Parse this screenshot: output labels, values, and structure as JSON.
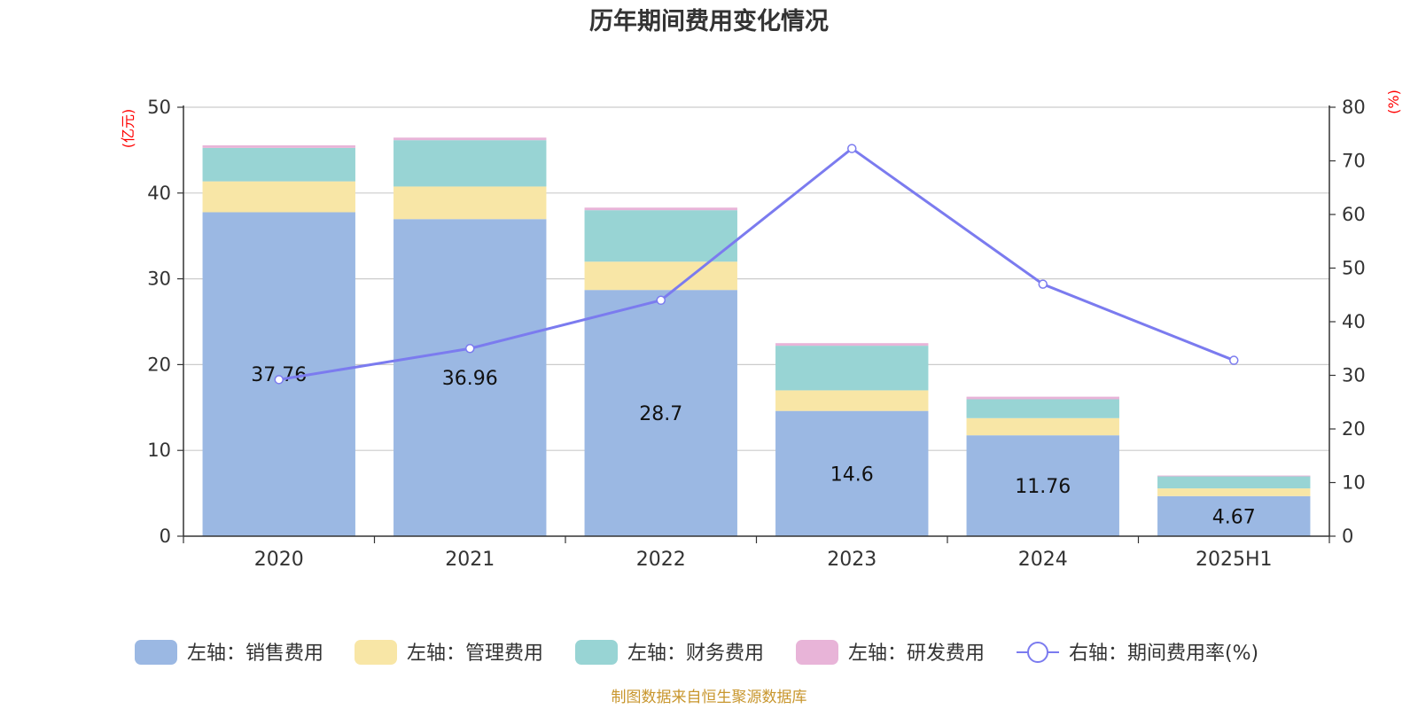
{
  "chart_data": {
    "type": "bar",
    "title": "历年期间费用变化情况",
    "categories": [
      "2020",
      "2021",
      "2022",
      "2023",
      "2024",
      "2025H1"
    ],
    "left_axis": {
      "unit": "(亿元)",
      "range": [
        0,
        50
      ],
      "ticks": [
        0,
        10,
        20,
        30,
        40,
        50
      ]
    },
    "right_axis": {
      "unit": "(%)",
      "range": [
        0,
        80
      ],
      "ticks": [
        0,
        10,
        20,
        30,
        40,
        50,
        60,
        70,
        80
      ]
    },
    "grid": true,
    "legend_position": "bottom",
    "series": [
      {
        "name": "左轴：销售费用",
        "type": "bar",
        "stack": "left",
        "color": "#9bb8e3",
        "values": [
          37.76,
          36.96,
          28.7,
          14.6,
          11.76,
          4.67
        ],
        "labels": [
          "37.76",
          "36.96",
          "28.7",
          "14.6",
          "11.76",
          "4.67"
        ]
      },
      {
        "name": "左轴：管理费用",
        "type": "bar",
        "stack": "left",
        "color": "#f8e6a6",
        "values": [
          3.6,
          3.8,
          3.3,
          2.4,
          2.0,
          0.9
        ]
      },
      {
        "name": "左轴：财务费用",
        "type": "bar",
        "stack": "left",
        "color": "#98d4d4",
        "values": [
          3.9,
          5.4,
          6.0,
          5.2,
          2.2,
          1.4
        ]
      },
      {
        "name": "左轴：研发费用",
        "type": "bar",
        "stack": "left",
        "color": "#e8b4d8",
        "values": [
          0.3,
          0.3,
          0.3,
          0.3,
          0.3,
          0.1
        ]
      },
      {
        "name": "右轴：期间费用率(%)",
        "type": "line",
        "axis": "right",
        "color": "#7b7bef",
        "values": [
          29.2,
          35.0,
          44.0,
          72.3,
          47.0,
          32.8
        ]
      }
    ]
  },
  "source_note": "制图数据来自恒生聚源数据库"
}
